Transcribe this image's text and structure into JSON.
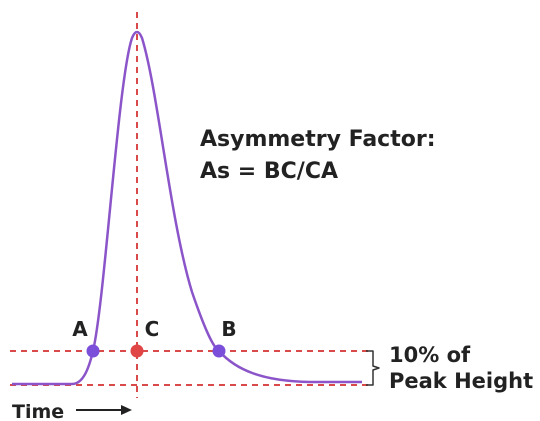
{
  "formula": {
    "title": "Asymmetry Factor:",
    "equation": "As = BC/CA"
  },
  "points": {
    "a": {
      "label": "A",
      "color": "#7b4fd9"
    },
    "b": {
      "label": "B",
      "color": "#7b4fd9"
    },
    "c": {
      "label": "C",
      "color": "#e04646"
    }
  },
  "threshold": {
    "line1": "10% of",
    "line2": "Peak Height",
    "fraction": 0.1
  },
  "axis": {
    "label": "Time"
  },
  "colors": {
    "curve": "#8b55c9",
    "guide": "#d94a4a",
    "text": "#222222"
  }
}
